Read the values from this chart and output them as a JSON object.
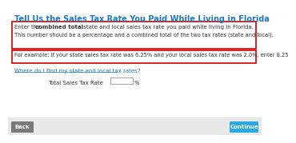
{
  "title": "Tell Us the Sales Tax Rate You Paid While Living in Florida",
  "title_color": "#1a7abf",
  "bg_color": "#ffffff",
  "box1_line1_pre": "Enter the ",
  "box1_line1_bold": "combined total",
  "box1_line1_post": " state and local sales tax rate you paid while living in Florida.",
  "box1_line2": "This number should be a percentage and a combined total of the two tax rates (state and local).",
  "box2_text": "For example: if your state sales tax rate was 6.25% and your local sales tax rate was 2.0%, enter 8.25",
  "link_text": "Where do I find my state and local tax rates?",
  "link_color": "#1a7abf",
  "label_text": "Total Sales Tax Rate",
  "percent_text": "%",
  "back_btn_text": "Back",
  "back_btn_color": "#7a7a7a",
  "continue_btn_text": "Continue",
  "continue_btn_color": "#29abe2",
  "red_border_color": "#cc0000",
  "bottom_bar_color": "#e8e8e8",
  "text_color": "#333333",
  "input_border_color": "#aaaaaa"
}
